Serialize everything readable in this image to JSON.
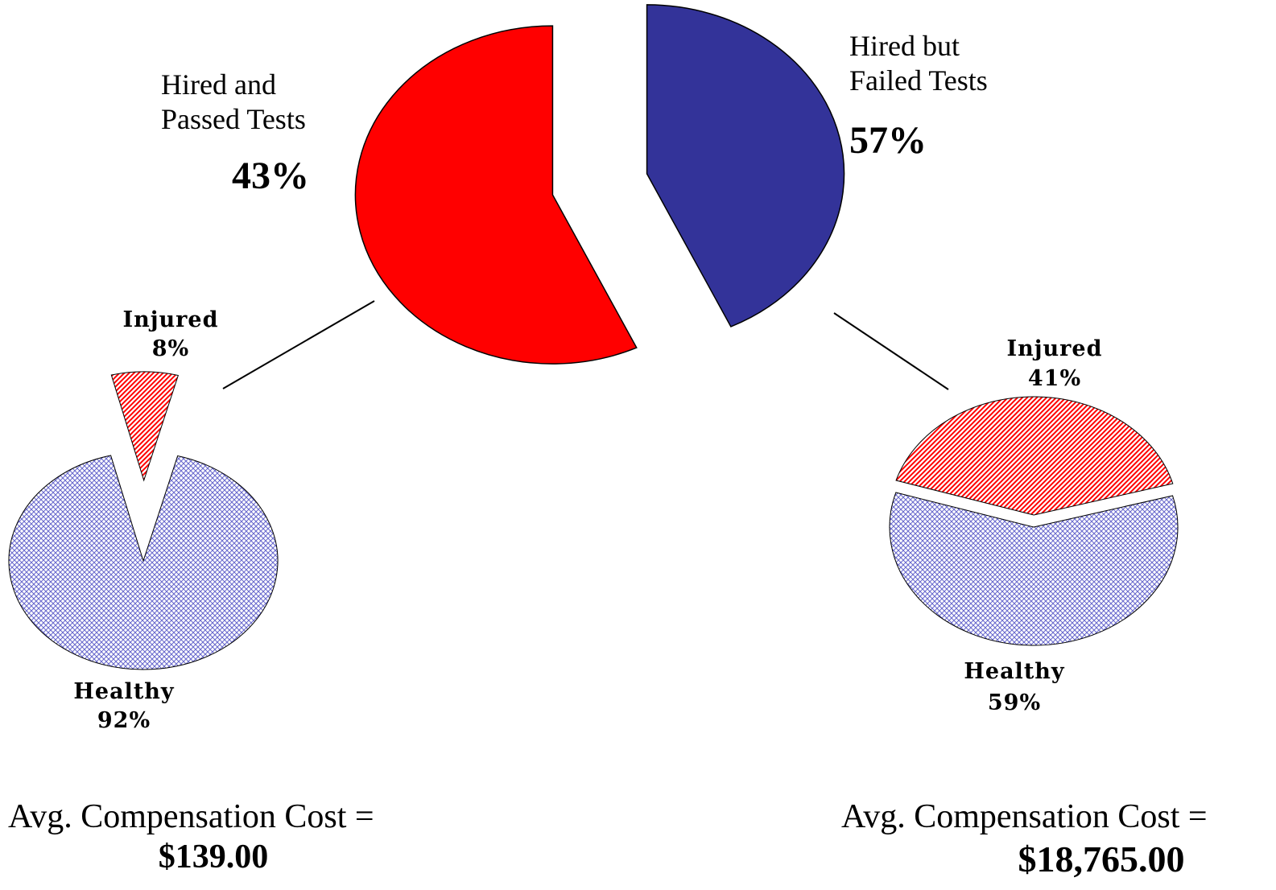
{
  "chart_data": [
    {
      "type": "pie",
      "categories": [
        "Hired and Passed Tests",
        "Hired but Failed Tests"
      ],
      "values": [
        43,
        57
      ],
      "value_labels": [
        "43%",
        "57%"
      ],
      "colors": [
        "#333399",
        "#ff0000"
      ],
      "hatched": false
    },
    {
      "type": "pie",
      "categories": [
        "Injured",
        "Healthy"
      ],
      "values": [
        8,
        92
      ],
      "value_labels": [
        "8%",
        "92%"
      ],
      "colors": [
        "#ff0000",
        "#6666cc"
      ],
      "hatched": true,
      "annotations": [
        "Avg. Compensation Cost =",
        "$139.00"
      ]
    },
    {
      "type": "pie",
      "categories": [
        "Injured",
        "Healthy"
      ],
      "values": [
        41,
        59
      ],
      "value_labels": [
        "41%",
        "59%"
      ],
      "colors": [
        "#ff0000",
        "#6666cc"
      ],
      "hatched": true,
      "annotations": [
        "Avg. Compensation Cost =",
        "$18,765.00"
      ]
    }
  ]
}
